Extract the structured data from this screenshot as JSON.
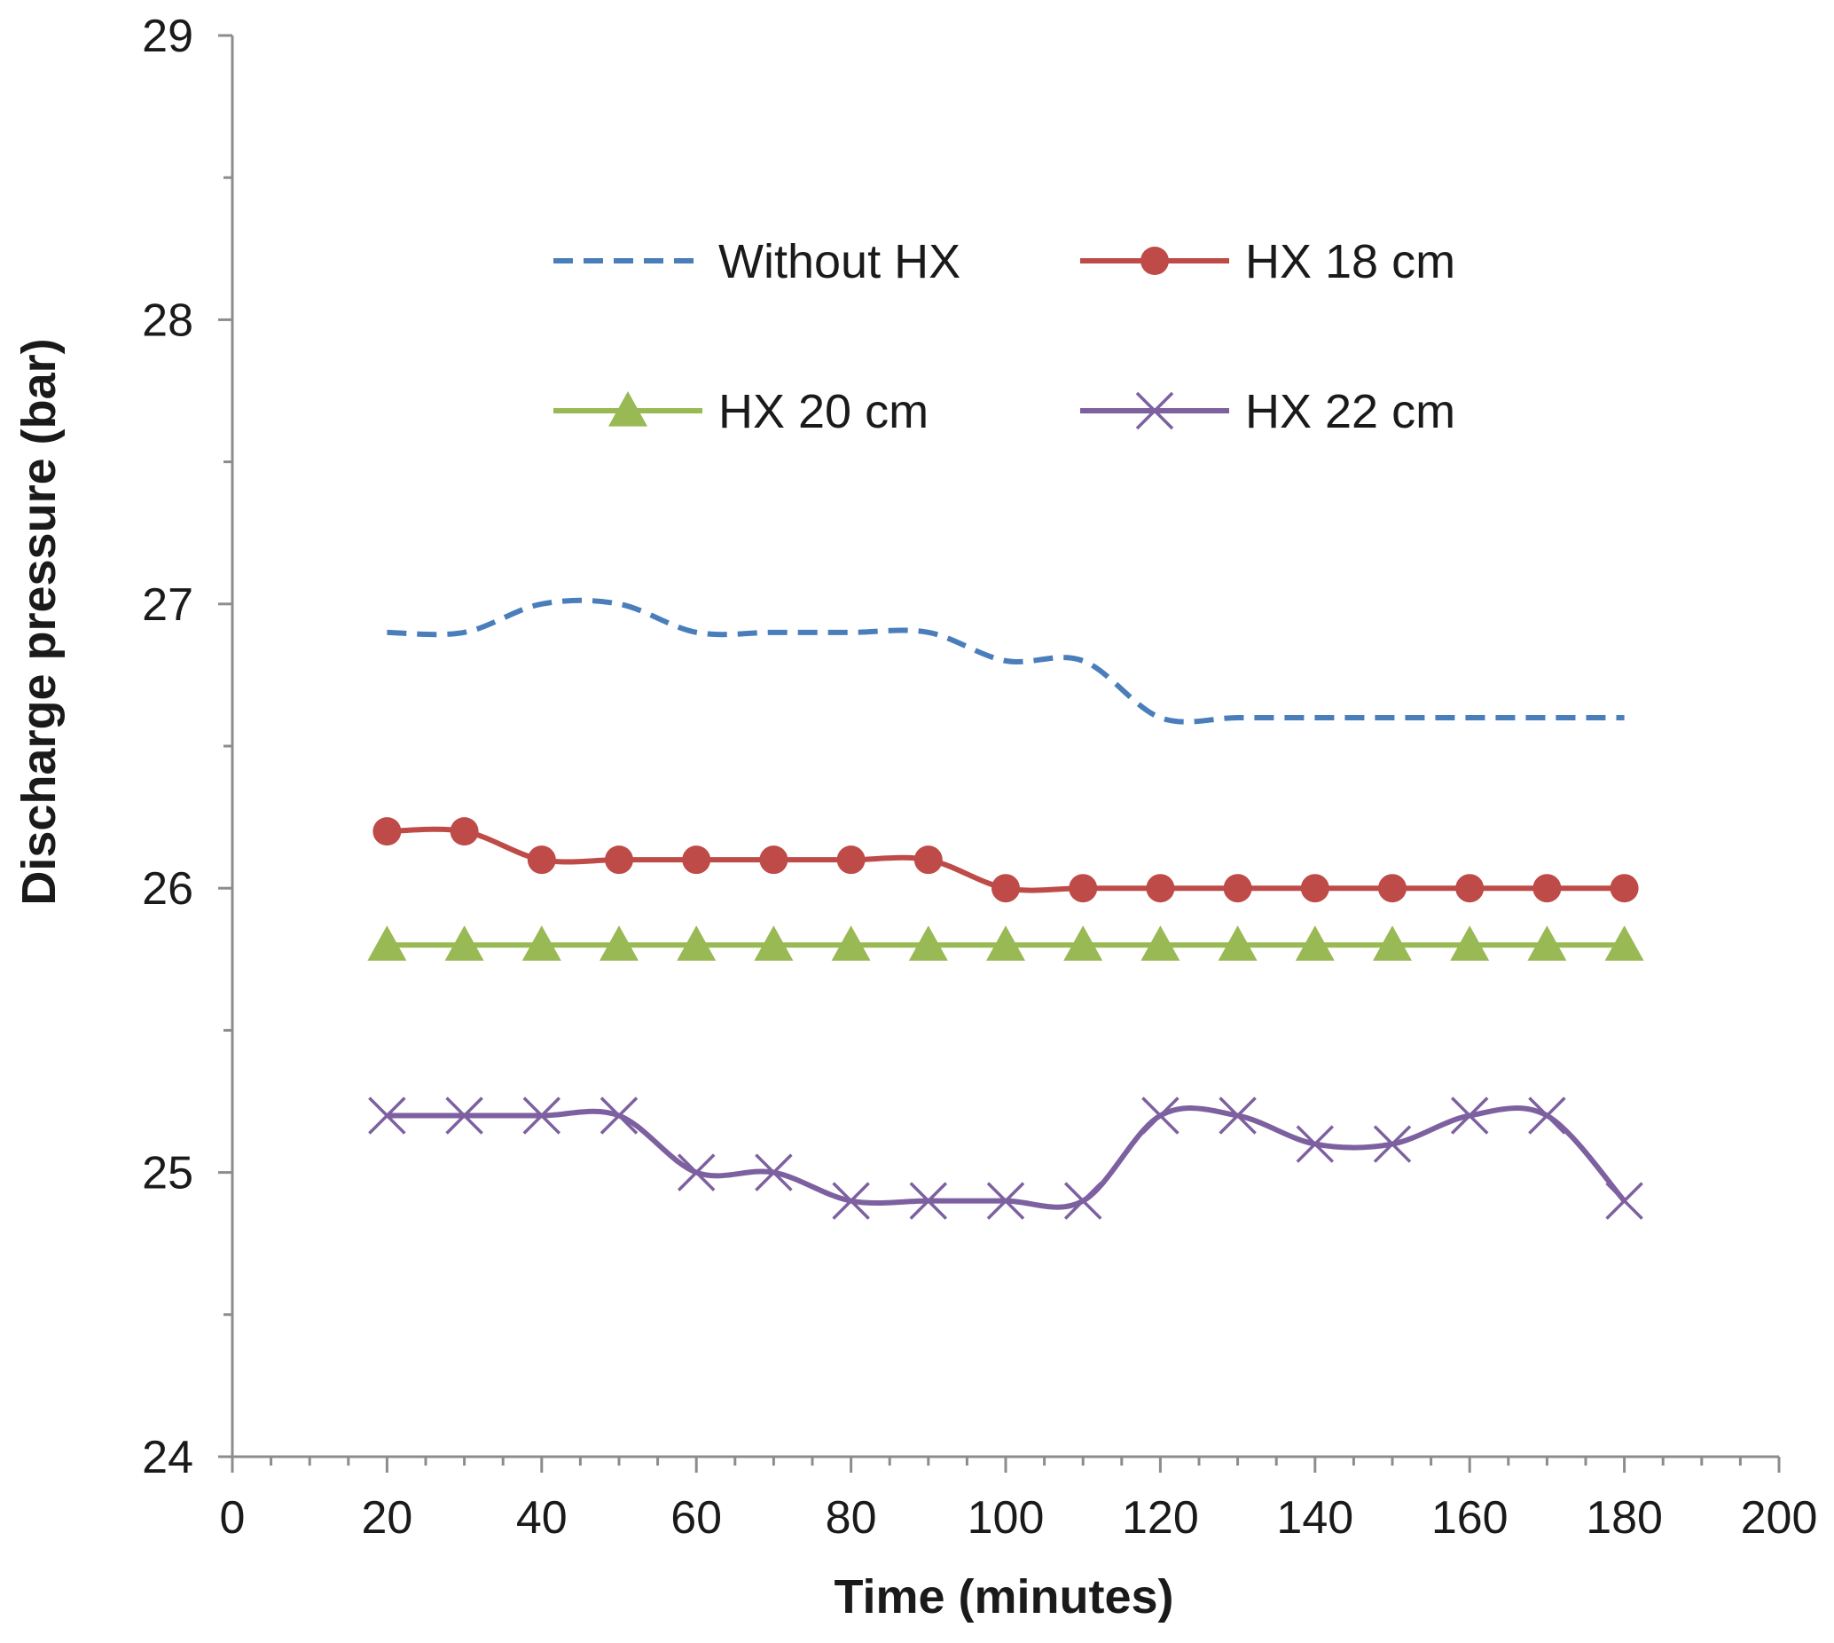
{
  "chart_data": {
    "type": "line",
    "title": "",
    "xlabel": "Time (minutes)",
    "ylabel": "Discharge pressure (bar)",
    "xlim": [
      0,
      200
    ],
    "ylim": [
      24,
      29
    ],
    "x_major_ticks": [
      0,
      20,
      40,
      60,
      80,
      100,
      120,
      140,
      160,
      180,
      200
    ],
    "x_tick_labels": [
      "0",
      "20",
      "40",
      "60",
      "80",
      "100",
      "120",
      "140",
      "160",
      "180",
      "200"
    ],
    "x_minor_step": 5,
    "y_major_ticks": [
      24,
      25,
      26,
      27,
      28,
      29
    ],
    "y_tick_labels": [
      "24",
      "25",
      "26",
      "27",
      "28",
      "29"
    ],
    "y_minor_step": 0.5,
    "grid": false,
    "legend_position": "top-center",
    "x": [
      20,
      30,
      40,
      50,
      60,
      70,
      80,
      90,
      100,
      110,
      120,
      130,
      140,
      150,
      160,
      170,
      180
    ],
    "series": [
      {
        "name": "Without HX",
        "color": "#4a7ebb",
        "line_style": "dashed",
        "marker": "none",
        "smooth": true,
        "values": [
          26.9,
          26.9,
          27.0,
          27.0,
          26.9,
          26.9,
          26.9,
          26.9,
          26.8,
          26.8,
          26.6,
          26.6,
          26.6,
          26.6,
          26.6,
          26.6,
          26.6
        ]
      },
      {
        "name": "HX 18 cm",
        "color": "#be4b48",
        "line_style": "solid",
        "marker": "circle",
        "smooth": true,
        "values": [
          26.2,
          26.2,
          26.1,
          26.1,
          26.1,
          26.1,
          26.1,
          26.1,
          26.0,
          26.0,
          26.0,
          26.0,
          26.0,
          26.0,
          26.0,
          26.0,
          26.0
        ]
      },
      {
        "name": "HX 20 cm",
        "color": "#98b954",
        "line_style": "solid",
        "marker": "triangle",
        "smooth": false,
        "values": [
          25.8,
          25.8,
          25.8,
          25.8,
          25.8,
          25.8,
          25.8,
          25.8,
          25.8,
          25.8,
          25.8,
          25.8,
          25.8,
          25.8,
          25.8,
          25.8,
          25.8
        ]
      },
      {
        "name": "HX 22 cm",
        "color": "#7d60a0",
        "line_style": "solid",
        "marker": "x",
        "smooth": true,
        "values": [
          25.2,
          25.2,
          25.2,
          25.2,
          25.0,
          25.0,
          24.9,
          24.9,
          24.9,
          24.9,
          25.2,
          25.2,
          25.1,
          25.1,
          25.2,
          25.2,
          24.9
        ]
      }
    ]
  }
}
